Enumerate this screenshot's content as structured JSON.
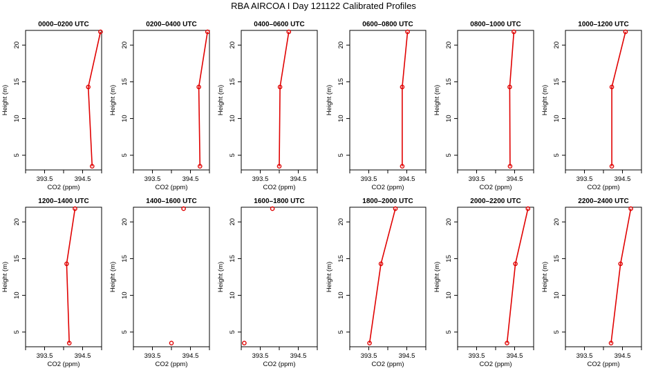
{
  "figure": {
    "title": "RBA AIRCOA I  Day 121122  Calibrated Profiles"
  },
  "style": {
    "series_color": "#e00000",
    "axis_color": "#000000"
  },
  "chart_data": [
    {
      "type": "line",
      "title": "0000–0200 UTC",
      "xlabel": "CO2 (ppm)",
      "ylabel": "Height (m)",
      "xlim": [
        393.0,
        395.0
      ],
      "ylim": [
        3,
        22
      ],
      "x_ticks": [
        393.5,
        394.5
      ],
      "x_minor_ticks": [
        393.0,
        394.0,
        395.0
      ],
      "y_ticks": [
        5,
        10,
        15,
        20
      ],
      "series": [
        {
          "x": [
            394.75,
            394.65,
            394.97
          ],
          "y": [
            3.5,
            14.3,
            21.8
          ]
        }
      ]
    },
    {
      "type": "line",
      "title": "0200–0400 UTC",
      "xlabel": "CO2 (ppm)",
      "ylabel": "Height (m)",
      "xlim": [
        393.0,
        395.0
      ],
      "ylim": [
        3,
        22
      ],
      "x_ticks": [
        393.5,
        394.5
      ],
      "x_minor_ticks": [
        393.0,
        394.0,
        395.0
      ],
      "y_ticks": [
        5,
        10,
        15,
        20
      ],
      "series": [
        {
          "x": [
            394.75,
            394.72,
            394.95
          ],
          "y": [
            3.5,
            14.3,
            21.8
          ]
        }
      ]
    },
    {
      "type": "line",
      "title": "0400–0600 UTC",
      "xlabel": "CO2 (ppm)",
      "ylabel": "Height (m)",
      "xlim": [
        393.0,
        395.0
      ],
      "ylim": [
        3,
        22
      ],
      "x_ticks": [
        393.5,
        394.5
      ],
      "x_minor_ticks": [
        393.0,
        394.0,
        395.0
      ],
      "y_ticks": [
        5,
        10,
        15,
        20
      ],
      "series": [
        {
          "x": [
            394.0,
            394.02,
            394.25
          ],
          "y": [
            3.5,
            14.3,
            21.8
          ]
        }
      ]
    },
    {
      "type": "line",
      "title": "0600–0800 UTC",
      "xlabel": "CO2 (ppm)",
      "ylabel": "Height (m)",
      "xlim": [
        393.0,
        395.0
      ],
      "ylim": [
        3,
        22
      ],
      "x_ticks": [
        393.5,
        394.5
      ],
      "x_minor_ticks": [
        393.0,
        394.0,
        395.0
      ],
      "y_ticks": [
        5,
        10,
        15,
        20
      ],
      "series": [
        {
          "x": [
            394.38,
            394.38,
            394.52
          ],
          "y": [
            3.5,
            14.3,
            21.8
          ]
        }
      ]
    },
    {
      "type": "line",
      "title": "0800–1000 UTC",
      "xlabel": "CO2 (ppm)",
      "ylabel": "Height (m)",
      "xlim": [
        393.0,
        395.0
      ],
      "ylim": [
        3,
        22
      ],
      "x_ticks": [
        393.5,
        394.5
      ],
      "x_minor_ticks": [
        393.0,
        394.0,
        395.0
      ],
      "y_ticks": [
        5,
        10,
        15,
        20
      ],
      "series": [
        {
          "x": [
            394.38,
            394.37,
            394.48
          ],
          "y": [
            3.5,
            14.3,
            21.8
          ]
        }
      ]
    },
    {
      "type": "line",
      "title": "1000–1200 UTC",
      "xlabel": "CO2 (ppm)",
      "ylabel": "Height (m)",
      "xlim": [
        393.0,
        395.0
      ],
      "ylim": [
        3,
        22
      ],
      "x_ticks": [
        393.5,
        394.5
      ],
      "x_minor_ticks": [
        393.0,
        394.0,
        395.0
      ],
      "y_ticks": [
        5,
        10,
        15,
        20
      ],
      "series": [
        {
          "x": [
            394.22,
            394.22,
            394.58
          ],
          "y": [
            3.5,
            14.3,
            21.8
          ]
        }
      ]
    },
    {
      "type": "line",
      "title": "1200–1400 UTC",
      "xlabel": "CO2 (ppm)",
      "ylabel": "Height (m)",
      "xlim": [
        393.0,
        395.0
      ],
      "ylim": [
        3,
        22
      ],
      "x_ticks": [
        393.5,
        394.5
      ],
      "x_minor_ticks": [
        393.0,
        394.0,
        395.0
      ],
      "y_ticks": [
        5,
        10,
        15,
        20
      ],
      "series": [
        {
          "x": [
            394.15,
            394.08,
            394.3
          ],
          "y": [
            3.5,
            14.3,
            21.8
          ]
        }
      ]
    },
    {
      "type": "scatter",
      "title": "1400–1600 UTC",
      "xlabel": "CO2 (ppm)",
      "ylabel": "Height (m)",
      "xlim": [
        393.0,
        395.0
      ],
      "ylim": [
        3,
        22
      ],
      "x_ticks": [
        393.5,
        394.5
      ],
      "x_minor_ticks": [
        393.0,
        394.0,
        395.0
      ],
      "y_ticks": [
        5,
        10,
        15,
        20
      ],
      "series": [
        {
          "x": [
            394.0,
            394.32
          ],
          "y": [
            3.5,
            21.8
          ]
        }
      ]
    },
    {
      "type": "scatter",
      "title": "1600–1800 UTC",
      "xlabel": "CO2 (ppm)",
      "ylabel": "Height (m)",
      "xlim": [
        393.0,
        395.0
      ],
      "ylim": [
        3,
        22
      ],
      "x_ticks": [
        393.5,
        394.5
      ],
      "x_minor_ticks": [
        393.0,
        394.0,
        395.0
      ],
      "y_ticks": [
        5,
        10,
        15,
        20
      ],
      "series": [
        {
          "x": [
            393.08,
            393.82
          ],
          "y": [
            3.5,
            21.8
          ]
        }
      ]
    },
    {
      "type": "line",
      "title": "1800–2000 UTC",
      "xlabel": "CO2 (ppm)",
      "ylabel": "Height (m)",
      "xlim": [
        393.0,
        395.0
      ],
      "ylim": [
        3,
        22
      ],
      "x_ticks": [
        393.5,
        394.5
      ],
      "x_minor_ticks": [
        393.0,
        394.0,
        395.0
      ],
      "y_ticks": [
        5,
        10,
        15,
        20
      ],
      "series": [
        {
          "x": [
            393.52,
            393.82,
            394.2
          ],
          "y": [
            3.5,
            14.3,
            21.8
          ]
        }
      ]
    },
    {
      "type": "line",
      "title": "2000–2200 UTC",
      "xlabel": "CO2 (ppm)",
      "ylabel": "Height (m)",
      "xlim": [
        393.0,
        395.0
      ],
      "ylim": [
        3,
        22
      ],
      "x_ticks": [
        393.5,
        394.5
      ],
      "x_minor_ticks": [
        393.0,
        394.0,
        395.0
      ],
      "y_ticks": [
        5,
        10,
        15,
        20
      ],
      "series": [
        {
          "x": [
            394.3,
            394.52,
            394.85
          ],
          "y": [
            3.5,
            14.3,
            21.8
          ]
        }
      ]
    },
    {
      "type": "line",
      "title": "2200–2400 UTC",
      "xlabel": "CO2 (ppm)",
      "ylabel": "Height (m)",
      "xlim": [
        393.0,
        395.0
      ],
      "ylim": [
        3,
        22
      ],
      "x_ticks": [
        393.5,
        394.5
      ],
      "x_minor_ticks": [
        393.0,
        394.0,
        395.0
      ],
      "y_ticks": [
        5,
        10,
        15,
        20
      ],
      "series": [
        {
          "x": [
            394.2,
            394.45,
            394.72
          ],
          "y": [
            3.5,
            14.3,
            21.8
          ]
        }
      ]
    }
  ]
}
